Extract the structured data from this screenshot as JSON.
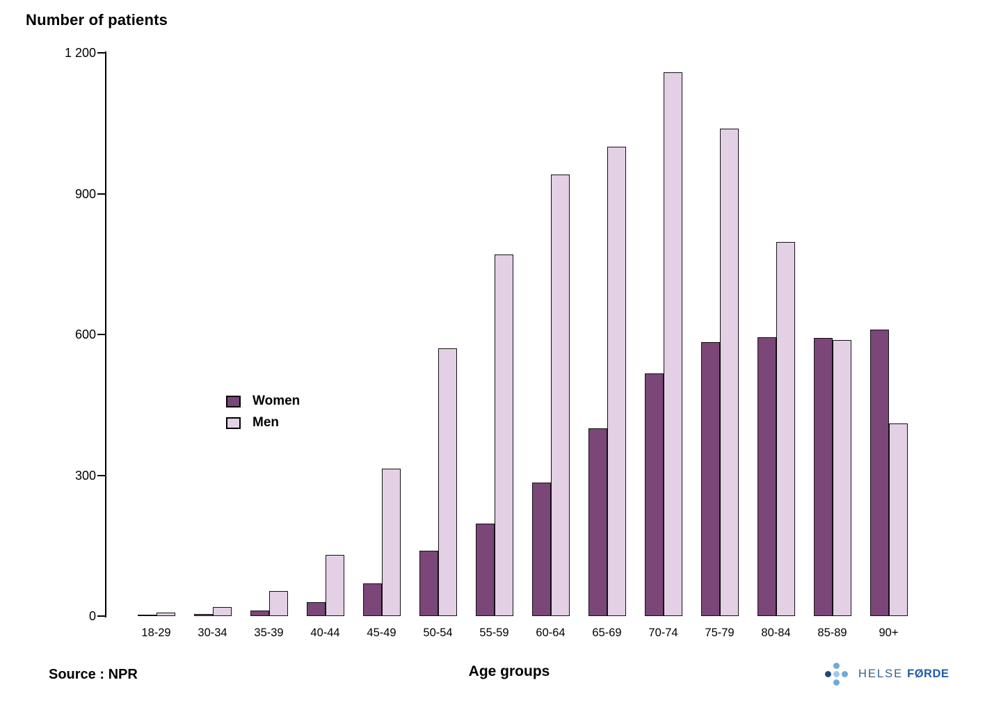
{
  "header": {
    "title": "Number of patients"
  },
  "footer": {
    "source": "Source : NPR",
    "x_axis_title": "Age groups"
  },
  "logo": {
    "helse": "HELSE",
    "forde": "FØRDE",
    "text_color_helse": "#30618e",
    "text_color_forde": "#1e5cab",
    "dot_colors": {
      "left": "#1a4a7e",
      "top": "#72a9d8",
      "center": "#a6c7e7",
      "right": "#72a9d8",
      "bottom": "#72a9d8"
    }
  },
  "y_axis": {
    "ticks": [
      {
        "label": "0",
        "value": 0
      },
      {
        "label": "300",
        "value": 300
      },
      {
        "label": "600",
        "value": 600
      },
      {
        "label": "900",
        "value": 900
      },
      {
        "label": "1 200",
        "value": 1200
      }
    ]
  },
  "colors": {
    "women_bar": "#7b4678",
    "men_bar": "#e3d0e5",
    "bar_border": "#101010",
    "axis": "#000000"
  },
  "chart_data": {
    "type": "bar",
    "title": "Number of patients",
    "xlabel": "Age groups",
    "ylabel": "Number of patients",
    "source": "NPR",
    "ylim": [
      0,
      1200
    ],
    "grid": false,
    "legend_position": "middle-left",
    "categories": [
      "18-29",
      "30-34",
      "35-39",
      "40-44",
      "45-49",
      "50-54",
      "55-59",
      "60-64",
      "65-69",
      "70-74",
      "75-79",
      "80-84",
      "85-89",
      "90+"
    ],
    "series": [
      {
        "name": "Women",
        "color": "#7b4678",
        "values": [
          3,
          5,
          12,
          29,
          70,
          139,
          197,
          284,
          400,
          517,
          584,
          594,
          593,
          611
        ]
      },
      {
        "name": "Men",
        "color": "#e3d0e5",
        "values": [
          8,
          19,
          53,
          130,
          314,
          570,
          770,
          940,
          1000,
          1158,
          1038,
          797,
          588,
          410
        ]
      }
    ]
  }
}
